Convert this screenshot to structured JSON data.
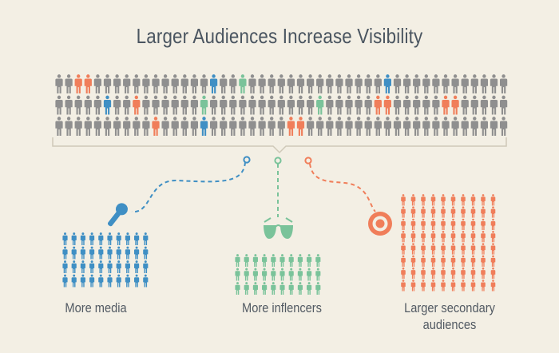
{
  "title": "Larger Audiences Increase Visibility",
  "colors": {
    "background": "#f3efe4",
    "crowd": "#8f8f8f",
    "media": "#3f8fc4",
    "influencer": "#7ac39a",
    "secondary": "#f07e5a",
    "text": "#4a5560"
  },
  "crowd": {
    "rows": 3,
    "columns": 47,
    "highlights": [
      {
        "row": 0,
        "col": 2,
        "type": "secondary"
      },
      {
        "row": 0,
        "col": 3,
        "type": "secondary"
      },
      {
        "row": 0,
        "col": 16,
        "type": "media"
      },
      {
        "row": 0,
        "col": 19,
        "type": "influencer"
      },
      {
        "row": 0,
        "col": 34,
        "type": "media"
      },
      {
        "row": 1,
        "col": 5,
        "type": "media"
      },
      {
        "row": 1,
        "col": 8,
        "type": "secondary"
      },
      {
        "row": 1,
        "col": 15,
        "type": "influencer"
      },
      {
        "row": 1,
        "col": 27,
        "type": "influencer"
      },
      {
        "row": 1,
        "col": 33,
        "type": "secondary"
      },
      {
        "row": 1,
        "col": 34,
        "type": "secondary"
      },
      {
        "row": 1,
        "col": 40,
        "type": "secondary"
      },
      {
        "row": 1,
        "col": 41,
        "type": "secondary"
      },
      {
        "row": 2,
        "col": 10,
        "type": "secondary"
      },
      {
        "row": 2,
        "col": 15,
        "type": "media"
      },
      {
        "row": 2,
        "col": 24,
        "type": "secondary"
      },
      {
        "row": 2,
        "col": 25,
        "type": "secondary"
      }
    ]
  },
  "groups": [
    {
      "id": "media",
      "label": "More media",
      "icon": "microphone-icon",
      "color": "#3f8fc4",
      "rows": 4,
      "columns": 10
    },
    {
      "id": "influencers",
      "label": "More inflencers",
      "icon": "sunglasses-icon",
      "color": "#7ac39a",
      "rows": 3,
      "columns": 10
    },
    {
      "id": "secondary",
      "label": "Larger secondary audiences",
      "label_lines": [
        "Larger secondary",
        "audiences"
      ],
      "icon": "target-icon",
      "color": "#f07e5a",
      "rows": 8,
      "columns": 10
    }
  ]
}
